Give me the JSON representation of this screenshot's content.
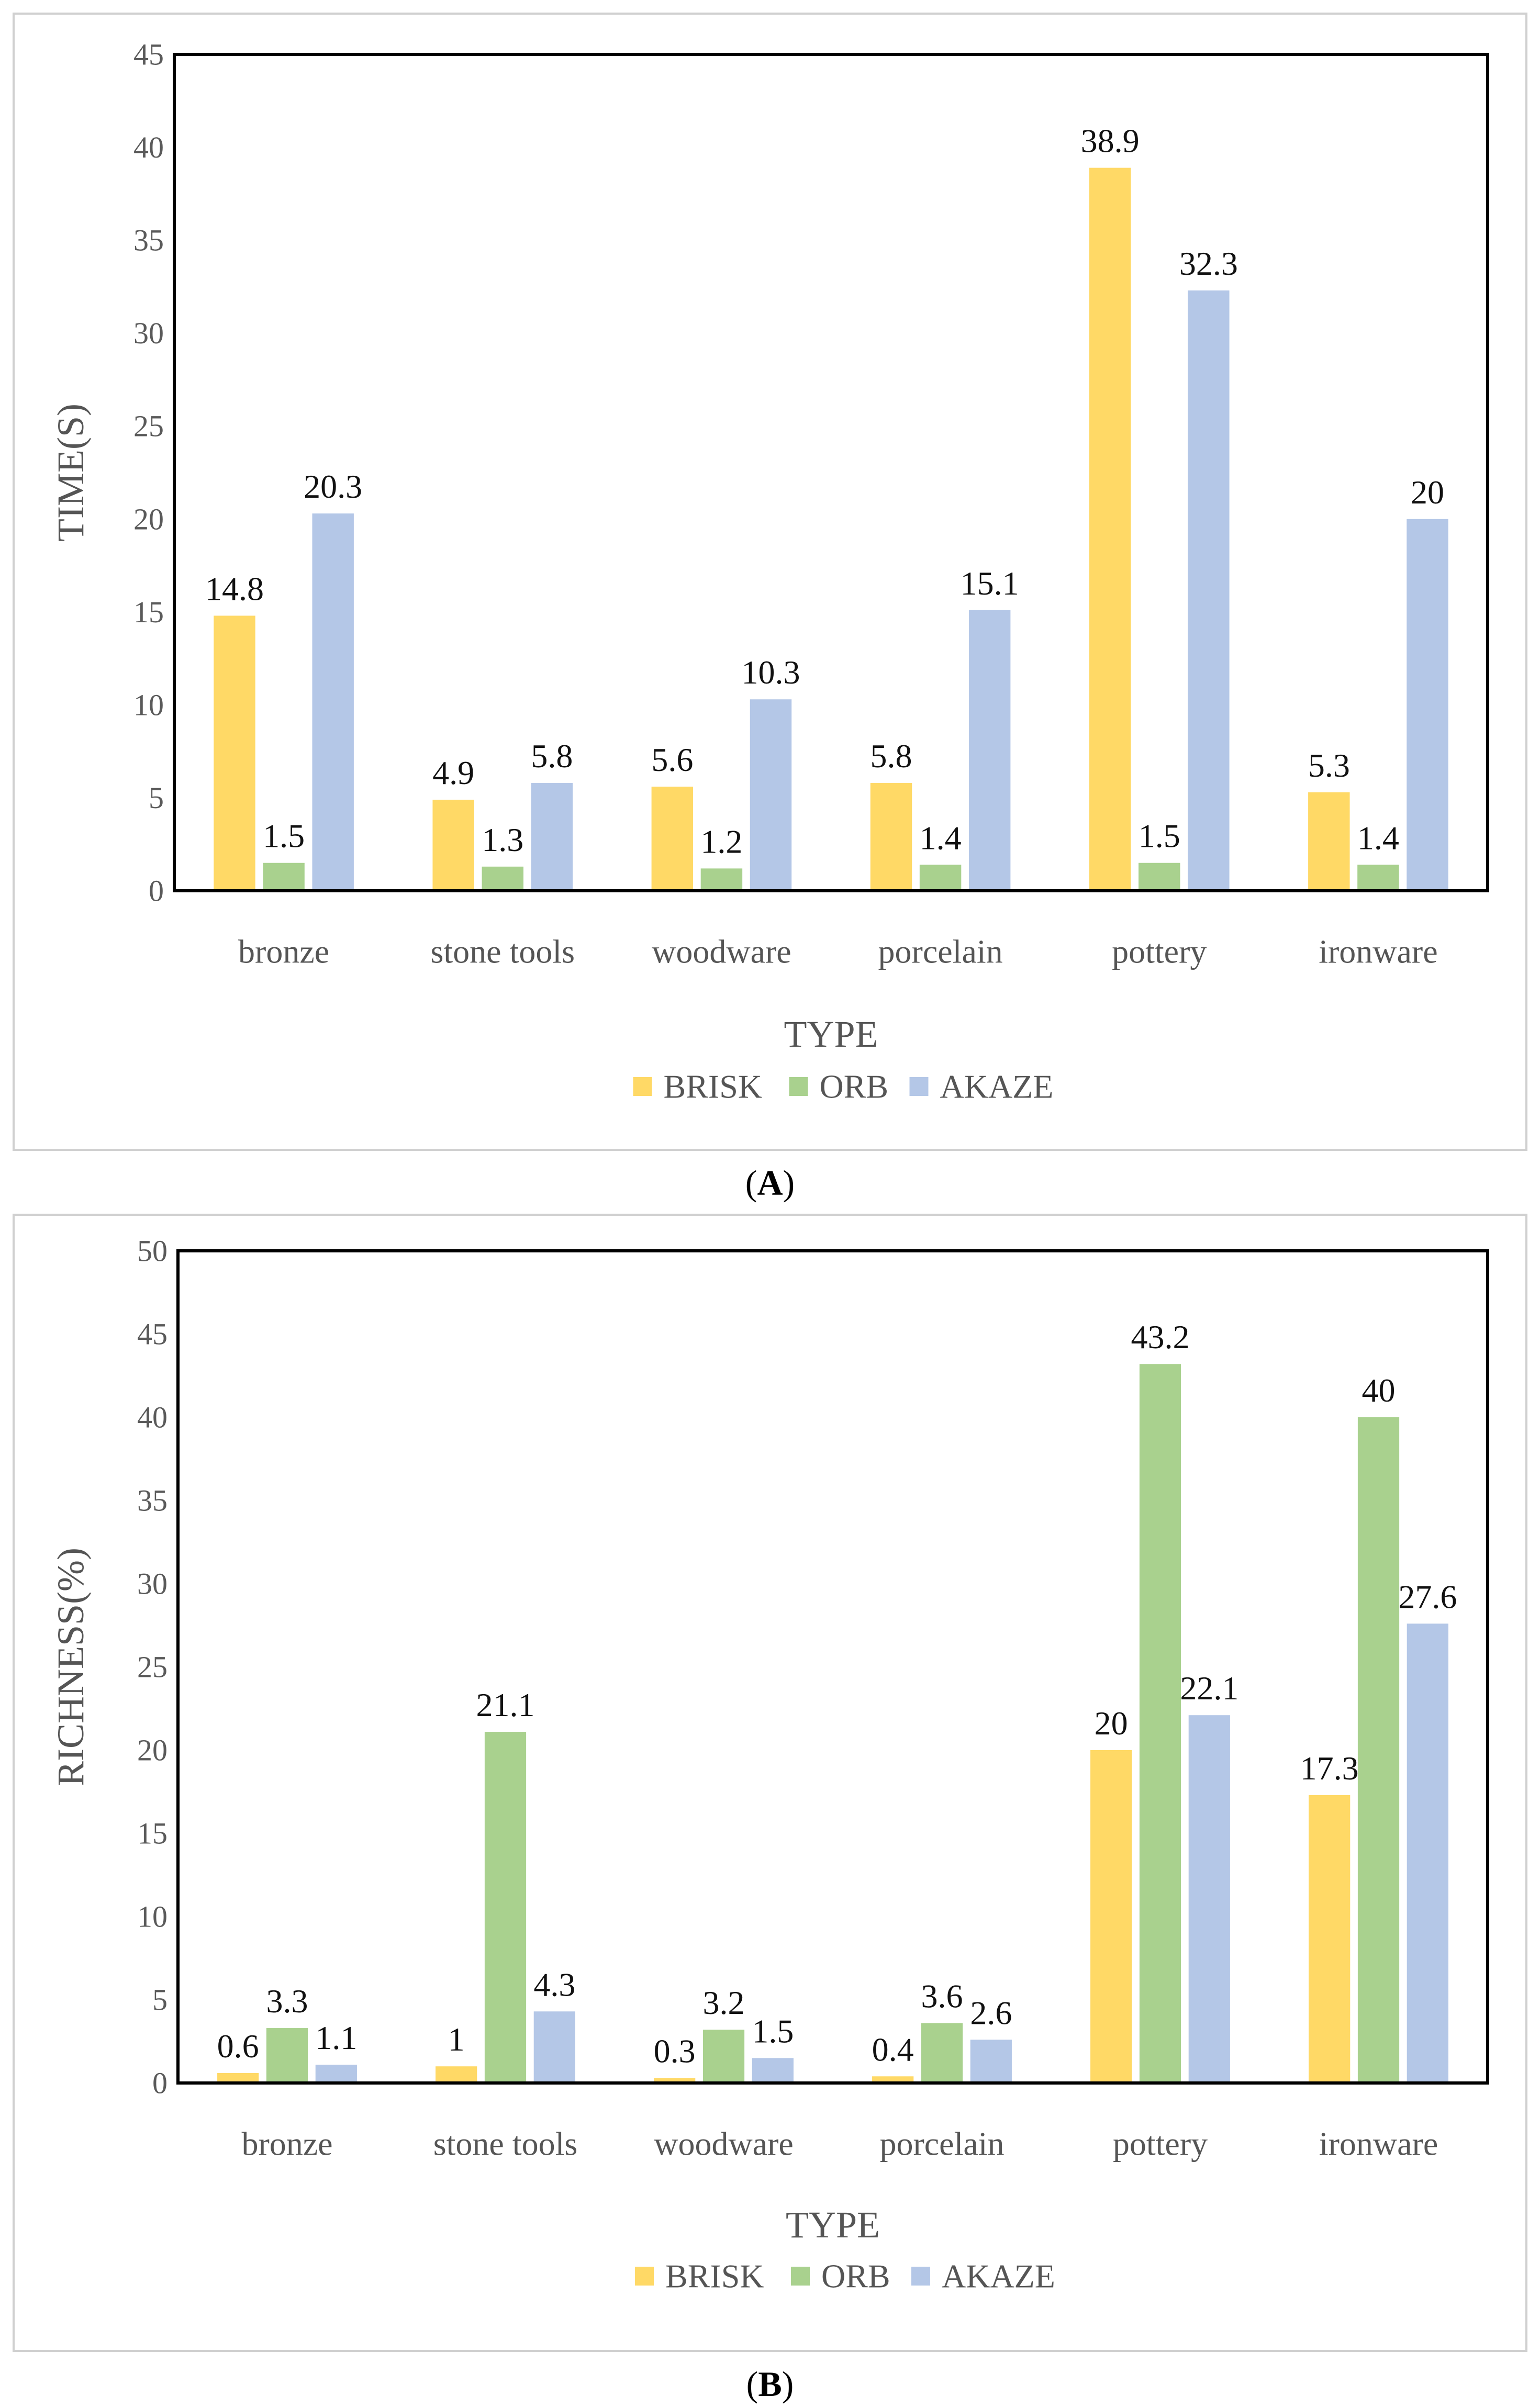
{
  "chart_data": [
    {
      "type": "bar",
      "panel": "A",
      "caption": "(A)",
      "categories": [
        "bronze",
        "stone tools",
        "woodware",
        "porcelain",
        "pottery",
        "ironware"
      ],
      "series": [
        {
          "name": "BRISK",
          "color": "#FFD966",
          "values": [
            14.8,
            4.9,
            5.6,
            5.8,
            38.9,
            5.3
          ]
        },
        {
          "name": "ORB",
          "color": "#A9D18E",
          "values": [
            1.5,
            1.3,
            1.2,
            1.4,
            1.5,
            1.4
          ]
        },
        {
          "name": "AKAZE",
          "color": "#B4C7E7",
          "values": [
            20.3,
            5.8,
            10.3,
            15.1,
            32.3,
            20
          ]
        }
      ],
      "xlabel": "TYPE",
      "ylabel": "TIME(S)",
      "ylim": [
        0,
        45
      ],
      "ytick_step": 5,
      "grid": false,
      "legend": "bottom"
    },
    {
      "type": "bar",
      "panel": "B",
      "caption": "(B)",
      "categories": [
        "bronze",
        "stone tools",
        "woodware",
        "porcelain",
        "pottery",
        "ironware"
      ],
      "series": [
        {
          "name": "BRISK",
          "color": "#FFD966",
          "values": [
            0.6,
            1,
            0.3,
            0.4,
            20,
            17.3
          ]
        },
        {
          "name": "ORB",
          "color": "#A9D18E",
          "values": [
            3.3,
            21.1,
            3.2,
            3.6,
            43.2,
            40
          ]
        },
        {
          "name": "AKAZE",
          "color": "#B4C7E7",
          "values": [
            1.1,
            4.3,
            1.5,
            2.6,
            22.1,
            27.6
          ]
        }
      ],
      "xlabel": "TYPE",
      "ylabel": "RICHNESS(%)",
      "ylim": [
        0,
        50
      ],
      "ytick_step": 5,
      "grid": false,
      "legend": "bottom"
    }
  ]
}
